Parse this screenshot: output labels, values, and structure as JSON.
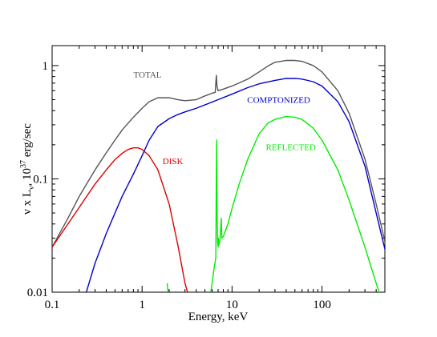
{
  "chart_data": {
    "type": "line",
    "title": "",
    "xlabel": "Energy, keV",
    "ylabel_parts": {
      "prefix": "ν x L",
      "sub": "ν",
      "mid": ", 10",
      "sup": "37",
      "suffix": " erg/sec"
    },
    "x_scale": "log",
    "y_scale": "log",
    "xlim": [
      0.1,
      500
    ],
    "ylim": [
      0.01,
      1.5
    ],
    "x_ticks": [
      0.1,
      1,
      10,
      100
    ],
    "x_tick_labels": [
      "0.1",
      "1",
      "10",
      "100"
    ],
    "y_ticks": [
      0.01,
      0.1,
      1
    ],
    "y_tick_labels": [
      "0.01",
      "0.1",
      "1"
    ],
    "grid": false,
    "legend": "inline labels",
    "series": [
      {
        "name": "TOTAL",
        "color": "#555555",
        "x": [
          0.1,
          0.15,
          0.2,
          0.3,
          0.4,
          0.5,
          0.6,
          0.8,
          1.0,
          1.2,
          1.5,
          2.0,
          2.5,
          3.0,
          4.0,
          5.0,
          6.0,
          6.5,
          6.6,
          6.7,
          6.8,
          7.0,
          8.0,
          10,
          15,
          20,
          25,
          30,
          40,
          50,
          60,
          80,
          100,
          150,
          200,
          300,
          400,
          500
        ],
        "y": [
          0.025,
          0.045,
          0.07,
          0.12,
          0.17,
          0.22,
          0.27,
          0.35,
          0.42,
          0.48,
          0.52,
          0.52,
          0.5,
          0.49,
          0.5,
          0.54,
          0.57,
          0.58,
          0.7,
          0.82,
          0.66,
          0.6,
          0.62,
          0.66,
          0.76,
          0.88,
          0.99,
          1.07,
          1.11,
          1.11,
          1.09,
          1.0,
          0.88,
          0.6,
          0.38,
          0.15,
          0.06,
          0.028
        ]
      },
      {
        "name": "COMPTONIZED",
        "color": "#0000cc",
        "x": [
          0.24,
          0.3,
          0.4,
          0.5,
          0.6,
          0.8,
          1.0,
          1.2,
          1.5,
          2.0,
          2.5,
          3.0,
          4.0,
          5.0,
          7.0,
          10,
          15,
          20,
          30,
          40,
          50,
          60,
          80,
          100,
          150,
          200,
          300,
          400,
          500
        ],
        "y": [
          0.01,
          0.018,
          0.033,
          0.05,
          0.07,
          0.11,
          0.16,
          0.22,
          0.29,
          0.34,
          0.37,
          0.39,
          0.42,
          0.45,
          0.5,
          0.56,
          0.64,
          0.69,
          0.74,
          0.77,
          0.77,
          0.76,
          0.72,
          0.66,
          0.48,
          0.32,
          0.13,
          0.05,
          0.024
        ]
      },
      {
        "name": "DISK",
        "color": "#dd0000",
        "x": [
          0.1,
          0.15,
          0.2,
          0.3,
          0.4,
          0.5,
          0.6,
          0.7,
          0.8,
          0.9,
          1.0,
          1.2,
          1.5,
          2.0,
          2.5,
          3.0,
          3.2
        ],
        "y": [
          0.025,
          0.04,
          0.056,
          0.09,
          0.12,
          0.148,
          0.168,
          0.182,
          0.188,
          0.188,
          0.182,
          0.16,
          0.12,
          0.06,
          0.026,
          0.012,
          0.01
        ]
      },
      {
        "name": "REFLECTED",
        "color": "#00ee00",
        "x": [
          5.8,
          6.0,
          6.3,
          6.6,
          6.7,
          6.75,
          6.8,
          6.9,
          7.0,
          7.05,
          7.1,
          7.3,
          7.5,
          7.6,
          7.7,
          8.0,
          9.0,
          10,
          12,
          15,
          20,
          25,
          30,
          40,
          50,
          60,
          80,
          100,
          150,
          200,
          300,
          400,
          450
        ],
        "y": [
          0.01,
          0.012,
          0.016,
          0.02,
          0.12,
          0.22,
          0.06,
          0.028,
          0.025,
          0.03,
          0.026,
          0.028,
          0.038,
          0.045,
          0.03,
          0.031,
          0.04,
          0.055,
          0.09,
          0.15,
          0.25,
          0.31,
          0.335,
          0.355,
          0.35,
          0.335,
          0.28,
          0.22,
          0.12,
          0.065,
          0.025,
          0.012,
          0.009
        ]
      },
      {
        "name": "REFLECTED-fragment",
        "color": "#00ee00",
        "x": [
          1.9,
          1.92,
          1.95
        ],
        "y": [
          0.012,
          0.011,
          0.01
        ]
      }
    ],
    "labels": [
      {
        "text": "TOTAL",
        "x": 1.15,
        "y": 0.78,
        "color": "#555555"
      },
      {
        "text": "COMPTONIZED",
        "x": 33,
        "y": 0.47,
        "color": "#0000cc"
      },
      {
        "text": "DISK",
        "x": 2.2,
        "y": 0.135,
        "color": "#dd0000"
      },
      {
        "text": "REFLECTED",
        "x": 45,
        "y": 0.18,
        "color": "#00ee00"
      }
    ]
  }
}
